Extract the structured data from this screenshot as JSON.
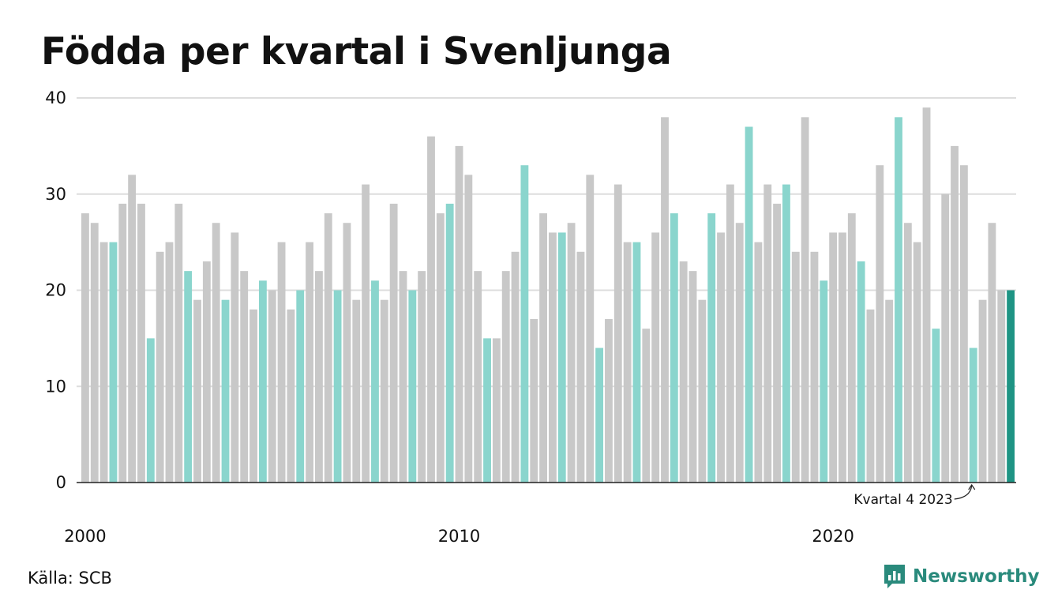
{
  "title": "Födda per kvartal i Svenljunga",
  "source": "Källa: SCB",
  "brand": {
    "name": "Newsworthy",
    "color": "#2a8a7c"
  },
  "colors": {
    "bar_default": "#c8c8c8",
    "bar_quarter4": "#8ad5cd",
    "bar_latest": "#1e9484",
    "grid": "#dddddd",
    "axis": "#222222"
  },
  "chart_data": {
    "type": "bar",
    "title": "Födda per kvartal i Svenljunga",
    "xlabel": "",
    "ylabel": "",
    "ylim": [
      0,
      40
    ],
    "yticks": [
      0,
      10,
      20,
      30,
      40
    ],
    "xticks": [
      {
        "label": "2000",
        "year": 2000
      },
      {
        "label": "2010",
        "year": 2010
      },
      {
        "label": "2020",
        "year": 2020
      }
    ],
    "grid": true,
    "highlight": "Kvartal 4 entries highlighted in teal; latest quarter in dark teal",
    "annotation": {
      "text": "Kvartal 4 2023",
      "year": 2023,
      "quarter": 4
    },
    "categories": [
      "2000 K1",
      "2000 K2",
      "2000 K3",
      "2000 K4",
      "2001 K1",
      "2001 K2",
      "2001 K3",
      "2001 K4",
      "2002 K1",
      "2002 K2",
      "2002 K3",
      "2002 K4",
      "2003 K1",
      "2003 K2",
      "2003 K3",
      "2003 K4",
      "2004 K1",
      "2004 K2",
      "2004 K3",
      "2004 K4",
      "2005 K1",
      "2005 K2",
      "2005 K3",
      "2005 K4",
      "2006 K1",
      "2006 K2",
      "2006 K3",
      "2006 K4",
      "2007 K1",
      "2007 K2",
      "2007 K3",
      "2007 K4",
      "2008 K1",
      "2008 K2",
      "2008 K3",
      "2008 K4",
      "2009 K1",
      "2009 K2",
      "2009 K3",
      "2009 K4",
      "2010 K1",
      "2010 K2",
      "2010 K3",
      "2010 K4",
      "2011 K1",
      "2011 K2",
      "2011 K3",
      "2011 K4",
      "2012 K1",
      "2012 K2",
      "2012 K3",
      "2012 K4",
      "2013 K1",
      "2013 K2",
      "2013 K3",
      "2013 K4",
      "2014 K1",
      "2014 K2",
      "2014 K3",
      "2014 K4",
      "2015 K1",
      "2015 K2",
      "2015 K3",
      "2015 K4",
      "2016 K1",
      "2016 K2",
      "2016 K3",
      "2016 K4",
      "2017 K1",
      "2017 K2",
      "2017 K3",
      "2017 K4",
      "2018 K1",
      "2018 K2",
      "2018 K3",
      "2018 K4",
      "2019 K1",
      "2019 K2",
      "2019 K3",
      "2019 K4",
      "2020 K1",
      "2020 K2",
      "2020 K3",
      "2020 K4",
      "2021 K1",
      "2021 K2",
      "2021 K3",
      "2021 K4",
      "2022 K1",
      "2022 K2",
      "2022 K3",
      "2022 K4",
      "2023 K1",
      "2023 K2",
      "2023 K3",
      "2023 K4",
      "2024 K1",
      "2024 K2",
      "2024 K3",
      "2024 K4"
    ],
    "values": [
      28,
      27,
      25,
      25,
      29,
      32,
      29,
      15,
      24,
      25,
      29,
      22,
      19,
      23,
      27,
      19,
      26,
      22,
      18,
      21,
      20,
      25,
      18,
      20,
      25,
      22,
      28,
      20,
      27,
      19,
      31,
      21,
      19,
      29,
      22,
      20,
      22,
      36,
      28,
      29,
      35,
      32,
      22,
      15,
      15,
      22,
      24,
      33,
      17,
      28,
      26,
      26,
      27,
      24,
      32,
      14,
      17,
      31,
      25,
      25,
      16,
      26,
      38,
      28,
      23,
      22,
      19,
      28,
      26,
      31,
      27,
      37,
      25,
      31,
      29,
      31,
      24,
      38,
      24,
      21,
      26,
      26,
      28,
      23,
      18,
      33,
      19,
      38,
      27,
      25,
      39,
      16,
      30,
      35,
      33,
      14,
      19,
      27,
      20,
      20
    ]
  }
}
